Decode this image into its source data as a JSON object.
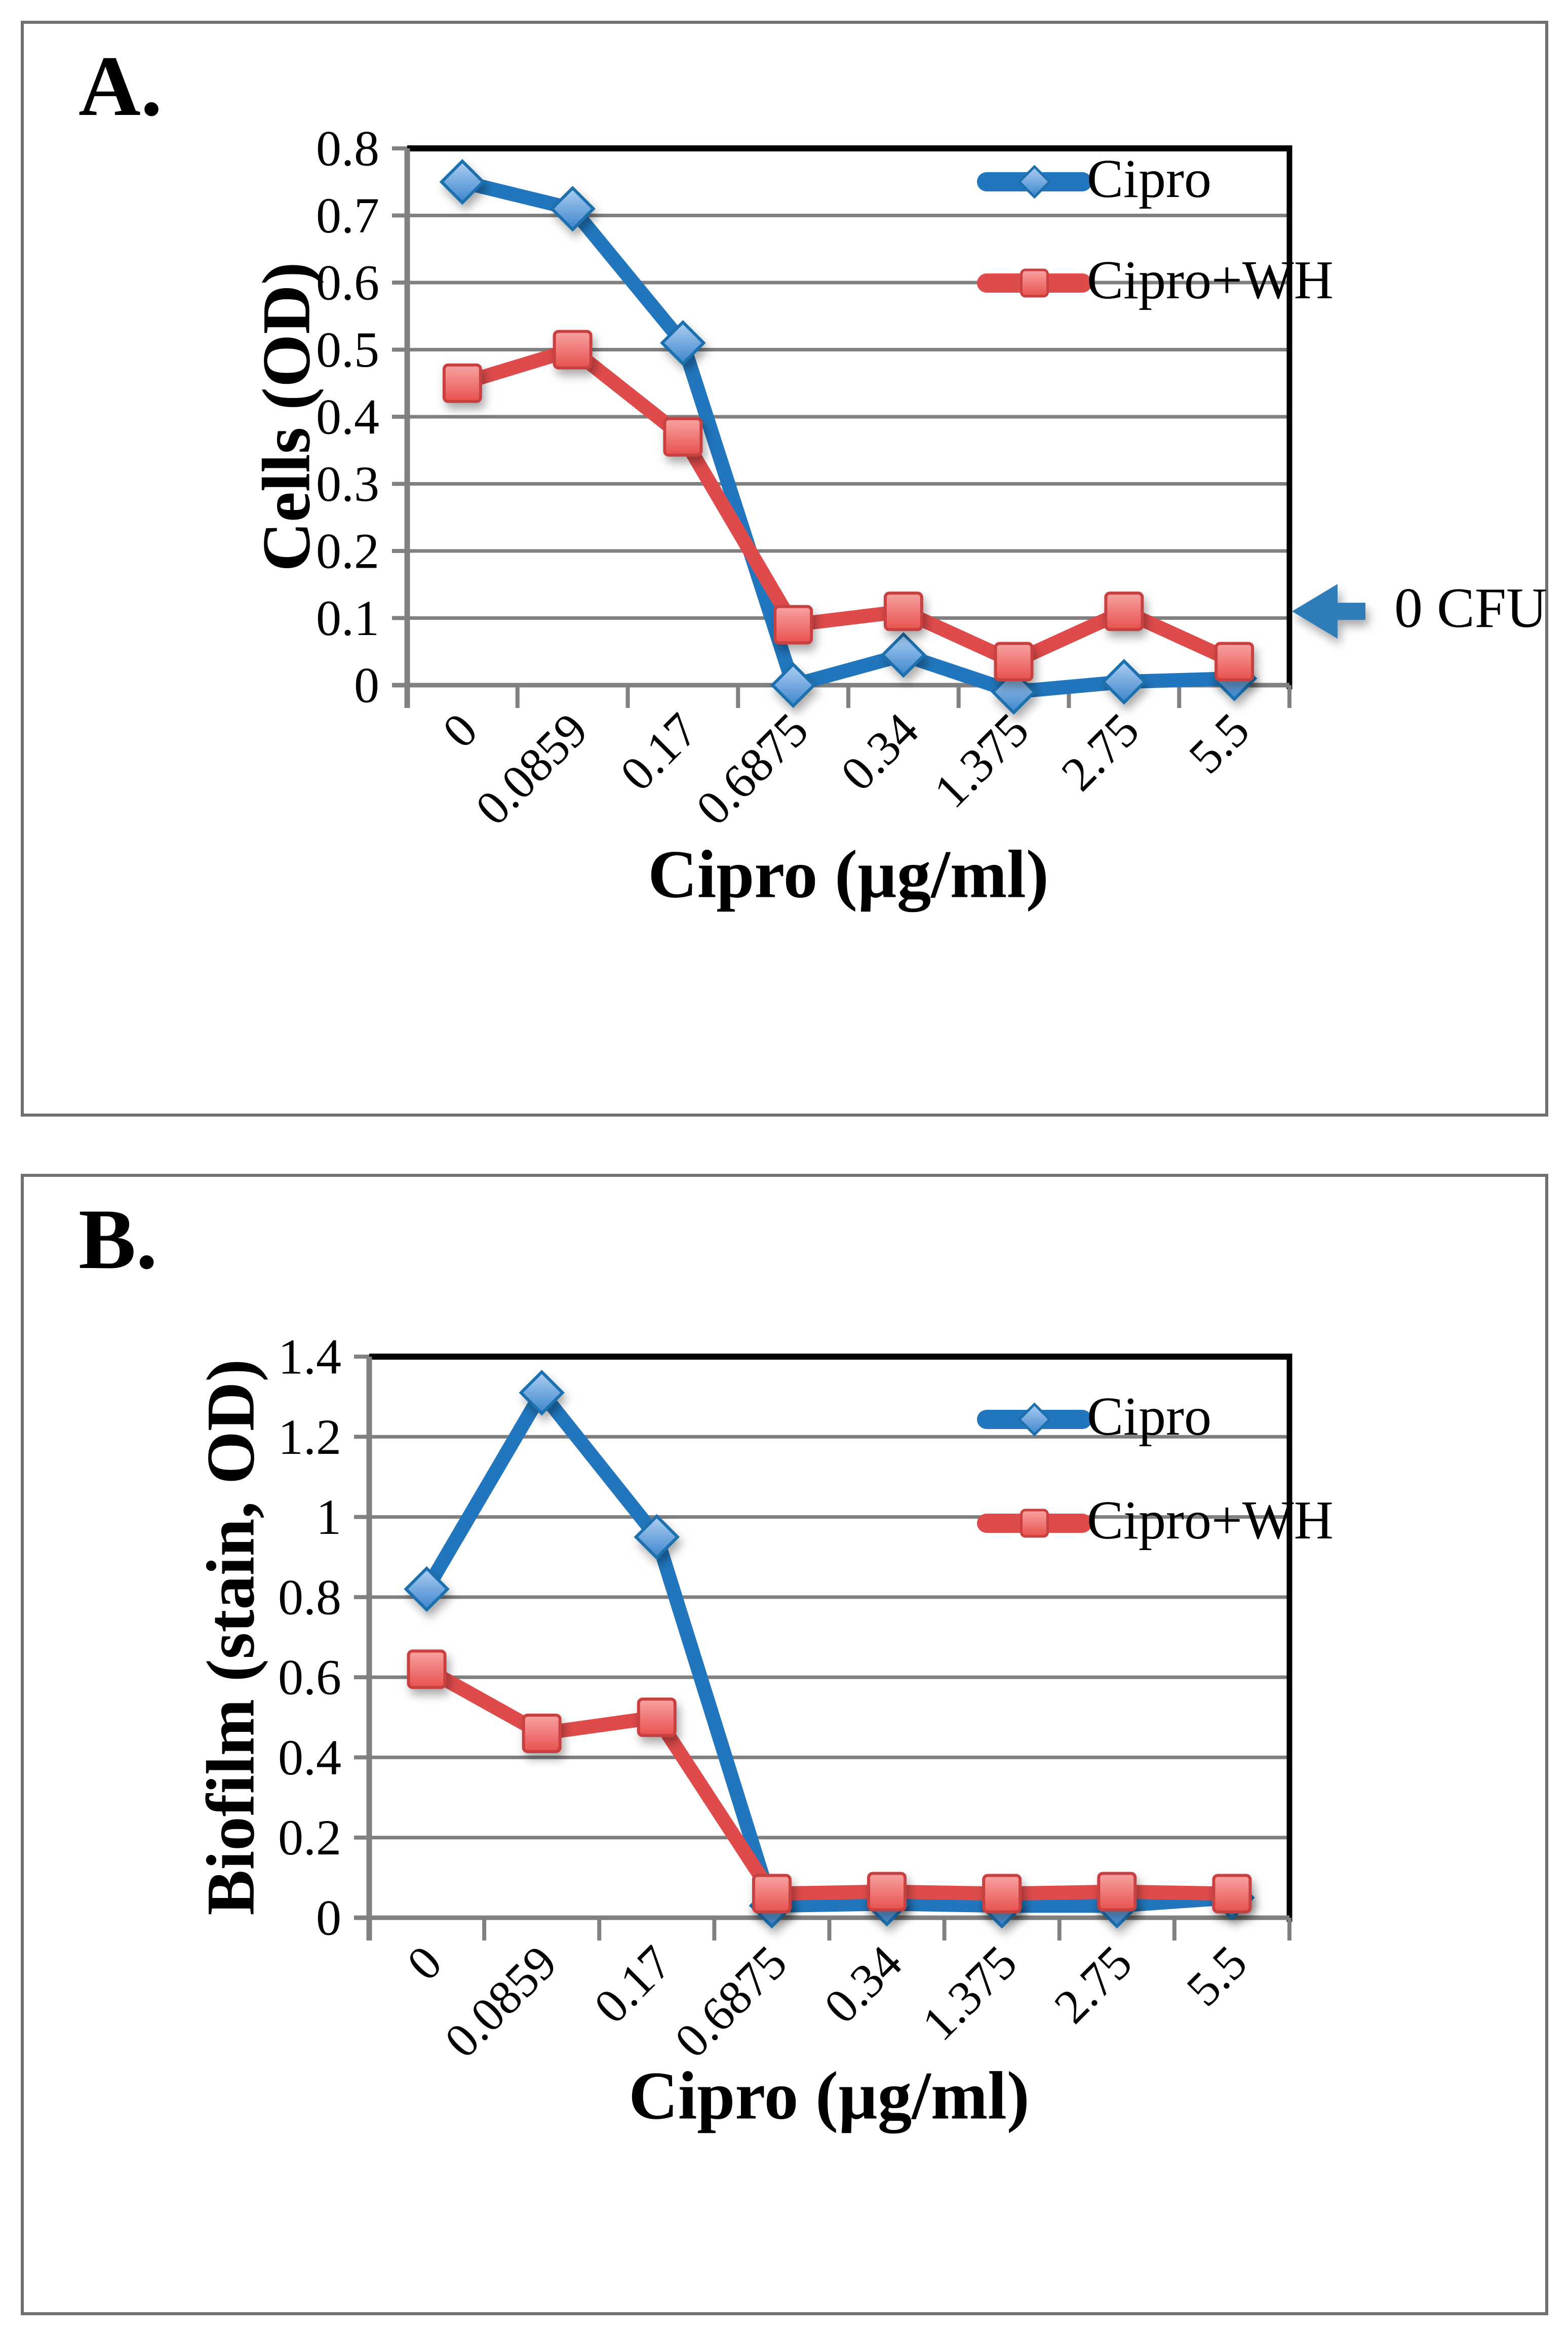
{
  "figure": {
    "background": "#ffffff",
    "grid_color": "#7f7f7f",
    "axis_color": "#808080",
    "frame_color": "#000000",
    "panel_border_color": "#6f6f6f"
  },
  "chart_data": [
    {
      "type": "line",
      "panel_label": "A.",
      "title": "",
      "xlabel": "Cipro (µg/ml)",
      "ylabel": "Cells (OD)",
      "categories": [
        "0",
        "0.0859",
        "0.17",
        "0.6875",
        "0.34",
        "1.375",
        "2.75",
        "5.5"
      ],
      "ytick_labels": [
        "0",
        "0.1",
        "0.2",
        "0.3",
        "0.4",
        "0.5",
        "0.6",
        "0.7",
        "0.8"
      ],
      "ylim": [
        0,
        0.8
      ],
      "grid": true,
      "legend_position": "top-right",
      "series": [
        {
          "name": "Cipro",
          "color": "#2176BD",
          "marker": "diamond",
          "values": [
            0.75,
            0.71,
            0.51,
            0.0,
            0.045,
            -0.01,
            0.005,
            0.01
          ]
        },
        {
          "name": "Cipro+WH",
          "color": "#DE4B4A",
          "marker": "square",
          "values": [
            0.45,
            0.5,
            0.37,
            0.09,
            0.11,
            0.035,
            0.11,
            0.035
          ]
        }
      ],
      "annotation": {
        "text": "0 CFU",
        "y": 0.11,
        "arrow_color": "#2E7CB8"
      }
    },
    {
      "type": "line",
      "panel_label": "B.",
      "title": "",
      "xlabel": "Cipro (µg/ml)",
      "ylabel": "Biofilm (stain, OD)",
      "categories": [
        "0",
        "0.0859",
        "0.17",
        "0.6875",
        "0.34",
        "1.375",
        "2.75",
        "5.5"
      ],
      "ytick_labels": [
        "0",
        "0.2",
        "0.4",
        "0.6",
        "0.8",
        "1",
        "1.2",
        "1.4"
      ],
      "ylim": [
        0,
        1.4
      ],
      "grid": true,
      "legend_position": "top-right",
      "series": [
        {
          "name": "Cipro",
          "color": "#2176BD",
          "marker": "diamond",
          "values": [
            0.82,
            1.31,
            0.95,
            0.03,
            0.035,
            0.03,
            0.03,
            0.05
          ]
        },
        {
          "name": "Cipro+WH",
          "color": "#DE4B4A",
          "marker": "square",
          "values": [
            0.62,
            0.46,
            0.5,
            0.06,
            0.065,
            0.06,
            0.065,
            0.06
          ]
        }
      ],
      "annotation": null
    }
  ]
}
